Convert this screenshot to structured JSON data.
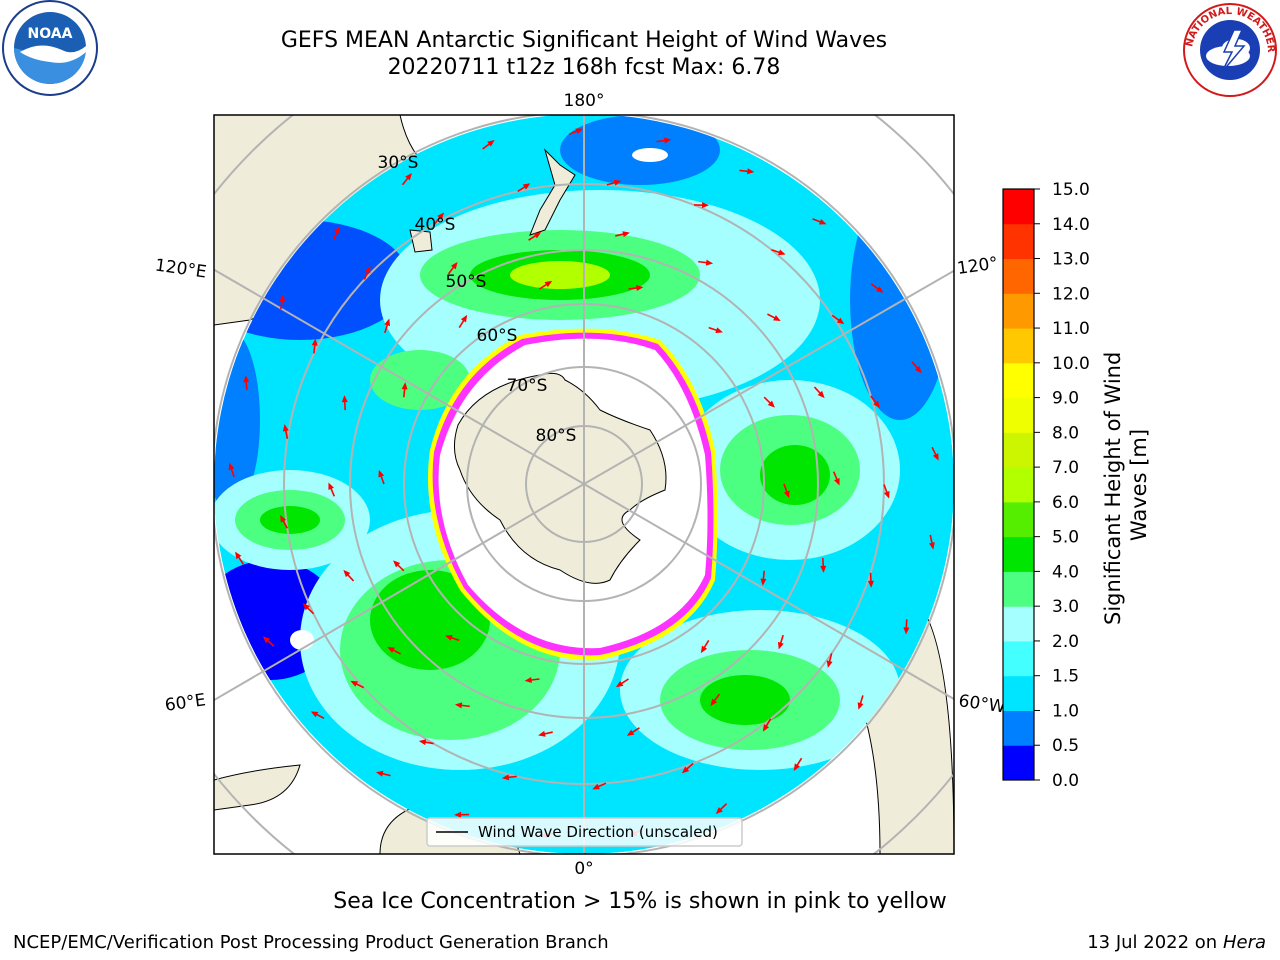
{
  "title": {
    "line1": "GEFS MEAN Antarctic Significant Height of Wind Waves",
    "line2": "20220711 t12z 168h fcst   Max: 6.78"
  },
  "map": {
    "projection": "south-polar-stereographic",
    "longitude_labels": [
      "180°",
      "120°E",
      "120°",
      "60°E",
      "60°W",
      "0°"
    ],
    "latitude_labels": [
      "30°S",
      "40°S",
      "50°S",
      "60°S",
      "70°S",
      "80°S"
    ],
    "legend_label": "Wind Wave Direction (unscaled)",
    "arrow_color": "#ff0000",
    "land_color": "#efedd9",
    "ice_colors": [
      "#ff33ff",
      "#ffff00"
    ]
  },
  "colorbar": {
    "label": "Significant Height of Wind Waves [m]",
    "ticks": [
      "0.0",
      "0.5",
      "1.0",
      "1.5",
      "2.0",
      "3.0",
      "4.0",
      "5.0",
      "6.0",
      "7.0",
      "8.0",
      "9.0",
      "10.0",
      "11.0",
      "12.0",
      "13.0",
      "14.0",
      "15.0"
    ],
    "colors": [
      "#0000ff",
      "#0080ff",
      "#00e5ff",
      "#44ffff",
      "#a5ffff",
      "#4dff80",
      "#00e600",
      "#55ee00",
      "#b2ff00",
      "#ccf500",
      "#f0ff00",
      "#ffff00",
      "#ffc800",
      "#ff9900",
      "#ff6600",
      "#ff3300",
      "#ff0000"
    ]
  },
  "subtitle": "Sea Ice Concentration > 15% is shown in pink to yellow",
  "footer": {
    "left": "NCEP/EMC/Verification Post Processing Product Generation Branch",
    "right_prefix": "13 Jul 2022 on ",
    "right_system": "Hera"
  },
  "logos": {
    "noaa_text": "NOAA",
    "nws_text": "NATIONAL WEATHER SERVICE"
  }
}
